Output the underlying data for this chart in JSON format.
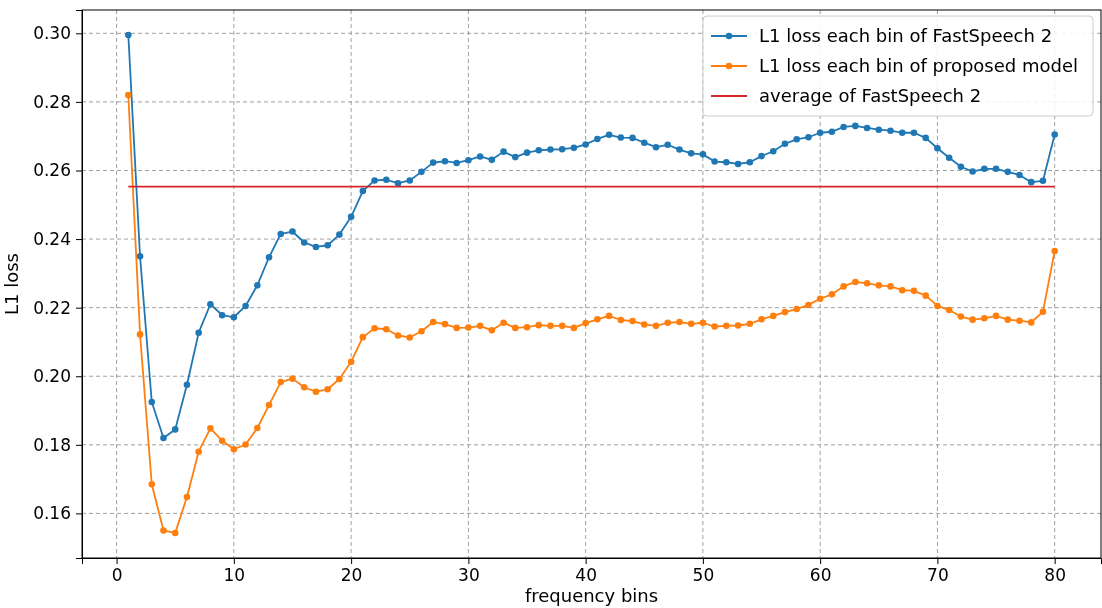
{
  "chart_data": {
    "type": "line",
    "xlabel": "frequency bins",
    "ylabel": "L1 loss",
    "x": [
      1,
      2,
      3,
      4,
      5,
      6,
      7,
      8,
      9,
      10,
      11,
      12,
      13,
      14,
      15,
      16,
      17,
      18,
      19,
      20,
      21,
      22,
      23,
      24,
      25,
      26,
      27,
      28,
      29,
      30,
      31,
      32,
      33,
      34,
      35,
      36,
      37,
      38,
      39,
      40,
      41,
      42,
      43,
      44,
      45,
      46,
      47,
      48,
      49,
      50,
      51,
      52,
      53,
      54,
      55,
      56,
      57,
      58,
      59,
      60,
      61,
      62,
      63,
      64,
      65,
      66,
      67,
      68,
      69,
      70,
      71,
      72,
      73,
      74,
      75,
      76,
      77,
      78,
      79,
      80
    ],
    "series": [
      {
        "name": "L1 loss each bin of FastSpeech 2",
        "color": "#1f77b4",
        "marker": "circle",
        "values": [
          0.2995,
          0.235,
          0.1925,
          0.182,
          0.1845,
          0.1975,
          0.2127,
          0.221,
          0.2178,
          0.2172,
          0.2205,
          0.2265,
          0.2347,
          0.2415,
          0.2422,
          0.239,
          0.2377,
          0.2382,
          0.2413,
          0.2465,
          0.254,
          0.2571,
          0.2573,
          0.2563,
          0.2571,
          0.2596,
          0.2623,
          0.2627,
          0.2622,
          0.263,
          0.2641,
          0.2631,
          0.2655,
          0.2639,
          0.2652,
          0.2659,
          0.2661,
          0.2662,
          0.2666,
          0.2676,
          0.2692,
          0.2704,
          0.2696,
          0.2695,
          0.2681,
          0.2668,
          0.2675,
          0.2661,
          0.265,
          0.2647,
          0.2626,
          0.2624,
          0.2619,
          0.2624,
          0.2642,
          0.2656,
          0.2678,
          0.2691,
          0.2697,
          0.271,
          0.2713,
          0.2727,
          0.273,
          0.2724,
          0.2719,
          0.2716,
          0.271,
          0.271,
          0.2695,
          0.2665,
          0.2637,
          0.2611,
          0.2597,
          0.2605,
          0.2605,
          0.2596,
          0.2587,
          0.2566,
          0.257,
          0.2705
        ]
      },
      {
        "name": "L1 loss each bin of proposed model",
        "color": "#ff7f0e",
        "marker": "circle",
        "values": [
          0.282,
          0.2122,
          0.1685,
          0.155,
          0.1543,
          0.1648,
          0.178,
          0.1848,
          0.1812,
          0.1787,
          0.1801,
          0.1849,
          0.1916,
          0.1983,
          0.1993,
          0.1968,
          0.1955,
          0.1962,
          0.1992,
          0.2042,
          0.2114,
          0.214,
          0.2137,
          0.2119,
          0.2113,
          0.2131,
          0.2158,
          0.2152,
          0.2141,
          0.2142,
          0.2147,
          0.2134,
          0.2156,
          0.2141,
          0.2143,
          0.2149,
          0.2147,
          0.2147,
          0.2141,
          0.2155,
          0.2166,
          0.2176,
          0.2164,
          0.2161,
          0.2151,
          0.2147,
          0.2156,
          0.2158,
          0.2153,
          0.2156,
          0.2145,
          0.2147,
          0.2148,
          0.2153,
          0.2166,
          0.2176,
          0.2187,
          0.2196,
          0.2208,
          0.2226,
          0.2239,
          0.2262,
          0.2275,
          0.2271,
          0.2265,
          0.2262,
          0.2251,
          0.2249,
          0.2235,
          0.2205,
          0.2193,
          0.2174,
          0.2165,
          0.2169,
          0.2176,
          0.2165,
          0.2162,
          0.2157,
          0.2188,
          0.2365
        ]
      },
      {
        "name": "average of FastSpeech 2",
        "color": "#d62728",
        "marker": "none",
        "x": [
          1,
          80
        ],
        "values": [
          0.2553,
          0.2553
        ]
      }
    ],
    "xlim": [
      -2.95,
      83.95
    ],
    "xticks": [
      0,
      10,
      20,
      30,
      40,
      50,
      60,
      70,
      80
    ],
    "ylim": [
      0.147,
      0.3068
    ],
    "yticks": [
      {
        "value": 0.16,
        "label": "0.16"
      },
      {
        "value": 0.18,
        "label": "0.18"
      },
      {
        "value": 0.2,
        "label": "0.20"
      },
      {
        "value": 0.22,
        "label": "0.22"
      },
      {
        "value": 0.24,
        "label": "0.24"
      },
      {
        "value": 0.26,
        "label": "0.26"
      },
      {
        "value": 0.28,
        "label": "0.28"
      },
      {
        "value": 0.3,
        "label": "0.30"
      }
    ],
    "grid": true,
    "legend": "top right",
    "line_style": "solid"
  }
}
